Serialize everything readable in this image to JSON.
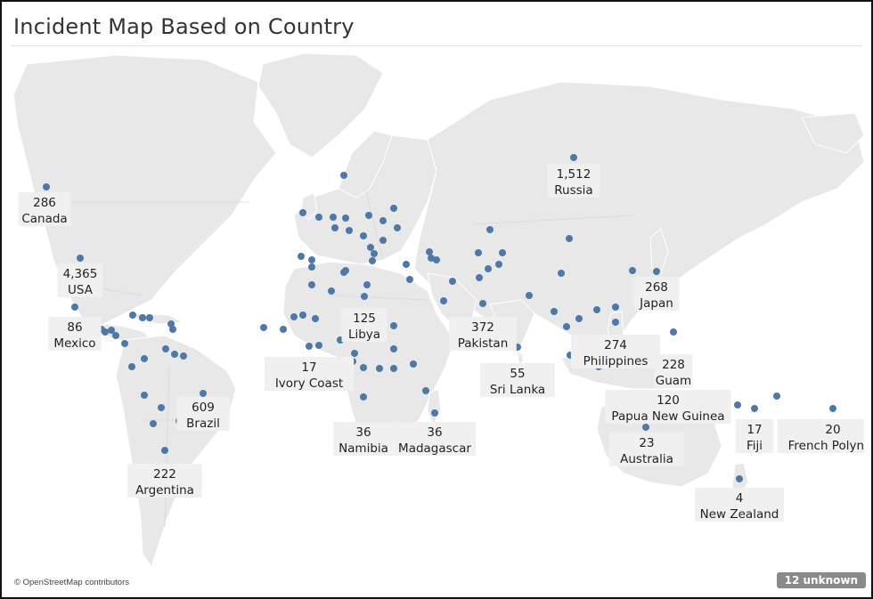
{
  "title": "Incident Map Based on Country",
  "credit": "© OpenStreetMap contributors",
  "unknown_badge": "12 unknown",
  "colors": {
    "dot": "#4e79a7",
    "land": "#e8e8e8",
    "label_bg": "#f0f0f0"
  },
  "labeled_countries": [
    {
      "key": "canada",
      "name": "Canada",
      "count": "286"
    },
    {
      "key": "usa",
      "name": "USA",
      "count": "4,365"
    },
    {
      "key": "mexico",
      "name": "Mexico",
      "count": "86"
    },
    {
      "key": "brazil",
      "name": "Brazil",
      "count": "609"
    },
    {
      "key": "argentina",
      "name": "Argentina",
      "count": "222"
    },
    {
      "key": "libya",
      "name": "Libya",
      "count": "125"
    },
    {
      "key": "ivory_coast",
      "name": "Ivory Coast",
      "count": "17"
    },
    {
      "key": "namibia",
      "name": "Namibia",
      "count": "36"
    },
    {
      "key": "madagascar",
      "name": "Madagascar",
      "count": "36"
    },
    {
      "key": "russia",
      "name": "Russia",
      "count": "1,512"
    },
    {
      "key": "pakistan",
      "name": "Pakistan",
      "count": "372"
    },
    {
      "key": "sri_lanka",
      "name": "Sri Lanka",
      "count": "55"
    },
    {
      "key": "japan",
      "name": "Japan",
      "count": "268"
    },
    {
      "key": "philippines",
      "name": "Philippines",
      "count": "274"
    },
    {
      "key": "guam",
      "name": "Guam",
      "count": "228"
    },
    {
      "key": "papua_new_guinea",
      "name": "Papua New Guinea",
      "count": "120"
    },
    {
      "key": "australia",
      "name": "Australia",
      "count": "23"
    },
    {
      "key": "fiji",
      "name": "Fiji",
      "count": "17"
    },
    {
      "key": "french_polynesia",
      "name": "French Polynes",
      "count": "20"
    },
    {
      "key": "new_zealand",
      "name": "New Zealand",
      "count": "4"
    }
  ]
}
